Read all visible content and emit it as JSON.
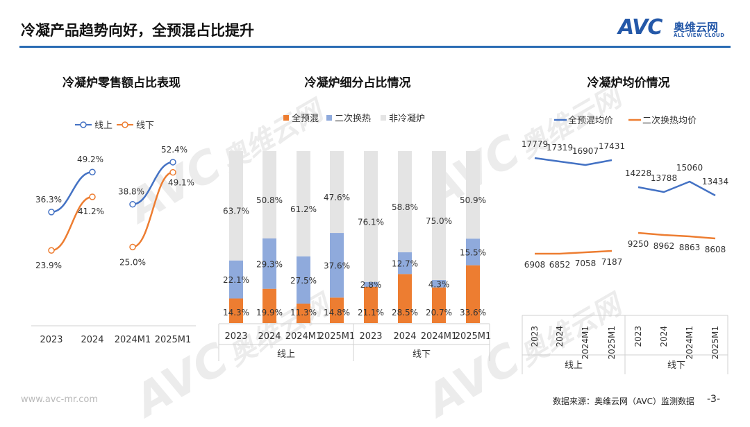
{
  "page": {
    "title": "冷凝产品趋势向好，全预混占比提升",
    "footer_url": "www.avc-mr.com",
    "source": "数据来源：奥维云网（AVC）监测数据",
    "page_number": "-3-"
  },
  "logo": {
    "mark": "AVC",
    "cn": "奥维云网",
    "en": "ALL VIEW CLOUD",
    "color": "#2458a8"
  },
  "watermark": {
    "mark": "AVC",
    "cn": "奥维云网",
    "en": "ALL VIEW CLOUD"
  },
  "colors": {
    "blue": "#4472c4",
    "orange": "#ed7d31",
    "grey": "#e4e4e4",
    "rule": "#2b6cb4"
  },
  "chart_data": [
    {
      "type": "line",
      "title": "冷凝炉零售额占比表现",
      "categories": [
        "2023",
        "2024",
        "2024M1",
        "2025M1"
      ],
      "unit": "%",
      "legend_position": "top",
      "ylim": [
        0,
        60
      ],
      "series": [
        {
          "name": "线上",
          "values": [
            36.3,
            49.2,
            38.8,
            52.4
          ],
          "labels": [
            "36.3%",
            "49.2%",
            "38.8%",
            "52.4%"
          ],
          "color": "#4472c4"
        },
        {
          "name": "线下",
          "values": [
            23.9,
            41.2,
            25.0,
            49.1
          ],
          "labels": [
            "23.9%",
            "41.2%",
            "25.0%",
            "49.1%"
          ],
          "color": "#ed7d31"
        }
      ]
    },
    {
      "type": "bar",
      "stacked": true,
      "title": "冷凝炉细分占比情况",
      "legend_position": "top",
      "ylim": [
        0,
        100
      ],
      "groups": [
        "线上",
        "线下"
      ],
      "categories": [
        "2023",
        "2024",
        "2024M1",
        "2025M1",
        "2023",
        "2024",
        "2024M1",
        "2025M1"
      ],
      "series": [
        {
          "name": "全预混",
          "values": [
            14.3,
            19.9,
            11.3,
            14.8,
            21.1,
            28.5,
            20.7,
            33.6
          ],
          "labels": [
            "14.3%",
            "19.9%",
            "11.3%",
            "14.8%",
            "21.1%",
            "28.5%",
            "20.7%",
            "33.6%"
          ],
          "color": "#ed7d31"
        },
        {
          "name": "二次换热",
          "values": [
            22.1,
            29.3,
            27.5,
            37.6,
            2.8,
            12.7,
            4.3,
            15.5
          ],
          "labels": [
            "22.1%",
            "29.3%",
            "27.5%",
            "37.6%",
            "2.8%",
            "12.7%",
            "4.3%",
            "15.5%"
          ],
          "color": "#8faadc"
        },
        {
          "name": "非冷凝炉",
          "values": [
            63.7,
            50.8,
            61.2,
            47.6,
            76.1,
            58.8,
            75.0,
            50.9
          ],
          "labels": [
            "63.7%",
            "50.8%",
            "61.2%",
            "47.6%",
            "76.1%",
            "58.8%",
            "75.0%",
            "50.9%"
          ],
          "color": "#e4e4e4"
        }
      ]
    },
    {
      "type": "line",
      "title": "冷凝炉均价情况",
      "legend_position": "top",
      "groups": [
        "线上",
        "线下"
      ],
      "categories": [
        "2023",
        "2024",
        "2024M1",
        "2025M1",
        "2023",
        "2024",
        "2024M1",
        "2025M1"
      ],
      "ylim": [
        5000,
        19000
      ],
      "series": [
        {
          "name": "全预混均价",
          "values": [
            17779,
            17319,
            16907,
            17431,
            14228,
            13788,
            15060,
            13434
          ],
          "labels": [
            "17779",
            "17319",
            "16907",
            "17431",
            "14228",
            "13788",
            "15060",
            "13434"
          ],
          "color": "#4472c4"
        },
        {
          "name": "二次换热均价",
          "values": [
            6908,
            6852,
            7058,
            7187,
            9250,
            8962,
            8863,
            8608
          ],
          "labels": [
            "6908",
            "6852",
            "7058",
            "7187",
            "9250",
            "8962",
            "8863",
            "8608"
          ],
          "color": "#ed7d31"
        }
      ]
    }
  ]
}
